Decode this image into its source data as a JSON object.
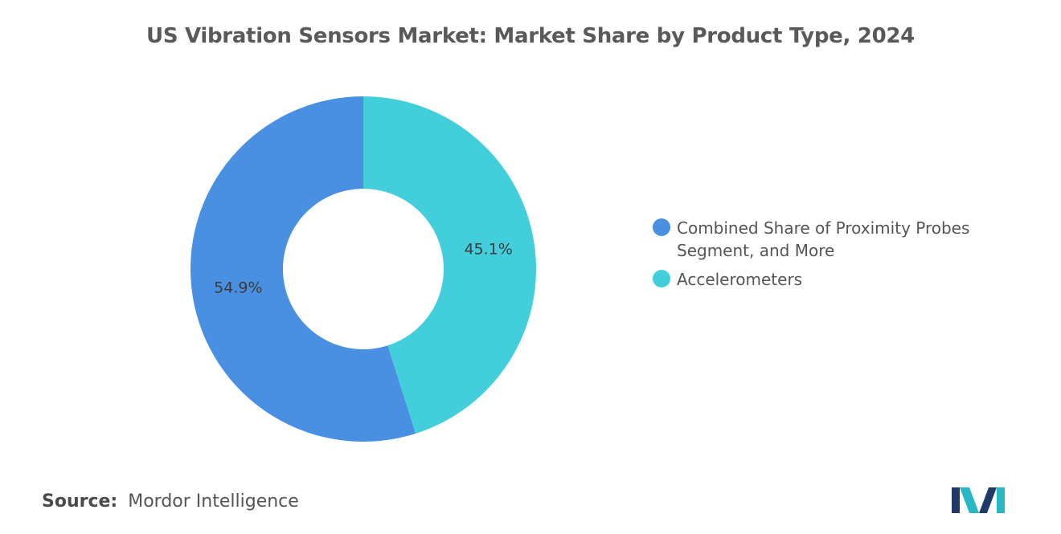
{
  "chart_data": {
    "type": "pie",
    "title": "US Vibration Sensors Market: Market Share by Product Type, 2024",
    "categories": [
      "Combined Share of Proximity Probes Segment, and More",
      "Accelerometers"
    ],
    "values": [
      54.9,
      45.1
    ],
    "value_labels": [
      "54.9%",
      "45.1%"
    ],
    "colors": [
      "#4a90e2",
      "#42cfdb"
    ],
    "donut": true,
    "legend_position": "right"
  },
  "legend": {
    "items": [
      {
        "label": "Combined Share of Proximity Probes Segment, and More",
        "color": "#4a90e2"
      },
      {
        "label": "Accelerometers",
        "color": "#42cfdb"
      }
    ]
  },
  "source": {
    "label": "Source:",
    "text": "Mordor Intelligence"
  },
  "logo": {
    "icon": "mordor-intelligence-logo-icon",
    "colors": [
      "#1f3a68",
      "#29b6c5"
    ]
  }
}
